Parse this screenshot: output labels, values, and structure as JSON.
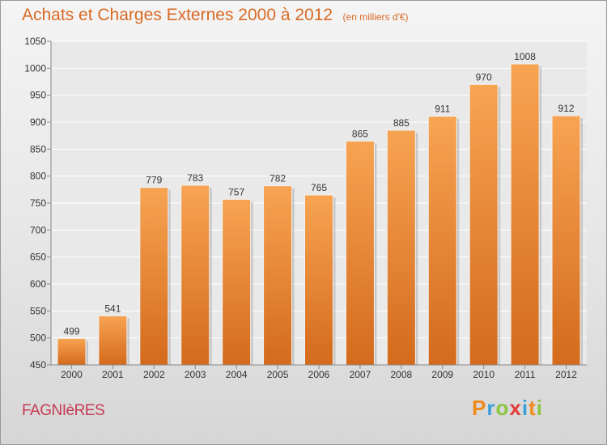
{
  "chart_data": {
    "type": "bar",
    "title": "Achats et Charges Externes 2000 à 2012",
    "subtitle": "(en milliers d'€)",
    "categories": [
      "2000",
      "2001",
      "2002",
      "2003",
      "2004",
      "2005",
      "2006",
      "2007",
      "2008",
      "2009",
      "2010",
      "2011",
      "2012"
    ],
    "values": [
      499,
      541,
      779,
      783,
      757,
      782,
      765,
      865,
      885,
      911,
      970,
      1008,
      912
    ],
    "ylim": [
      450,
      1050
    ],
    "yticks": [
      450,
      500,
      550,
      600,
      650,
      700,
      750,
      800,
      850,
      900,
      950,
      1000,
      1050
    ],
    "grid": true,
    "bar_color_top": "#f7a452",
    "bar_color_bottom": "#d46a1c"
  },
  "footer": {
    "commune": "FAGNIèRES",
    "brand": "Proxiti",
    "brand_colors": [
      "#f08a1c",
      "#3aa0d8",
      "#8bc53f",
      "#e43b3b",
      "#3aa0d8",
      "#f08a1c",
      "#8bc53f"
    ]
  }
}
